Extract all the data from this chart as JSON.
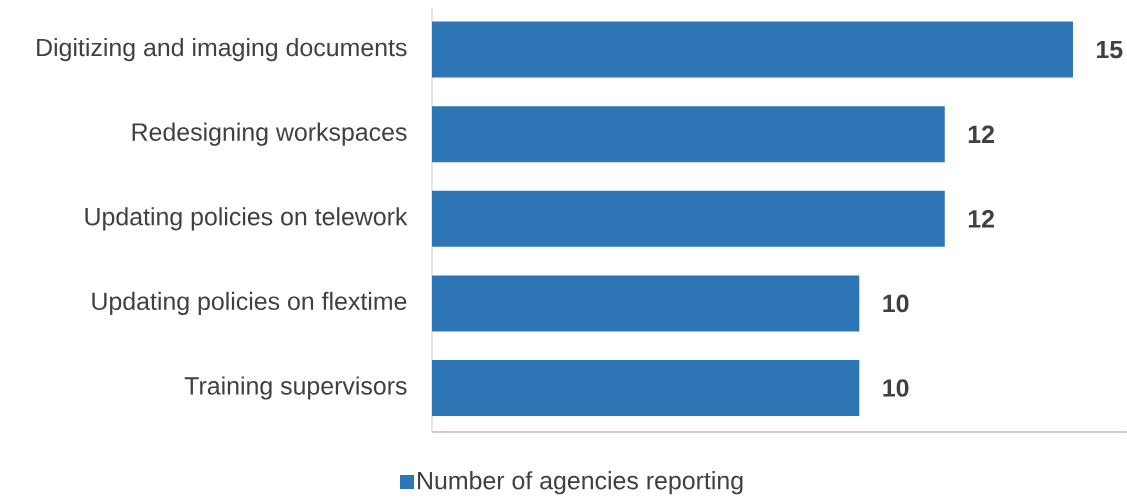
{
  "chart_data": {
    "type": "bar",
    "orientation": "horizontal",
    "data_labels": true,
    "legend": "bottom",
    "categories": [
      "Digitizing and imaging documents",
      "Redesigning workspaces",
      "Updating policies on telework",
      "Updating policies on flextime",
      "Training supervisors"
    ],
    "series": [
      {
        "name": "Number of agencies reporting",
        "color": "#2e75b6",
        "values": [
          15,
          12,
          12,
          10,
          10
        ]
      }
    ]
  }
}
